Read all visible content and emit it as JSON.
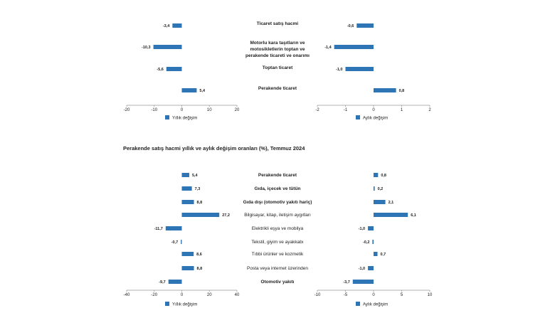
{
  "section_title": "Perakende satış hacmi yıllık ve aylık değişim oranları (%), Temmuz 2024",
  "colors": {
    "bar": "#2e75b6",
    "axis": "#999999",
    "text": "#222222"
  },
  "chart_data": [
    {
      "type": "bar",
      "orientation": "horizontal",
      "panel": "top-left",
      "categories": [
        "Ticaret satış hacmi",
        "Motorlu kara taşıtların ve motosikletlerin toptan ve perakende ticareti ve onarımı",
        "Toptan ticaret",
        "Perakende ticaret"
      ],
      "category_lines": [
        [
          "Ticaret satış hacmi"
        ],
        [
          "Motorlu kara taşıtların ve",
          "motosikletlerin toptan ve",
          "perakende ticareti ve onarımı"
        ],
        [
          "Toptan ticaret"
        ],
        [
          "Perakende ticaret"
        ]
      ],
      "category_bold": [
        true,
        true,
        true,
        true
      ],
      "values": [
        -3.4,
        -10.3,
        -5.6,
        5.4
      ],
      "value_labels": [
        "-3,4",
        "-10,3",
        "-5,6",
        "5,4"
      ],
      "xlim": [
        -20,
        20
      ],
      "xticks": [
        -20,
        -10,
        0,
        10,
        20
      ],
      "xtick_labels": [
        "-20",
        "-10",
        "0",
        "10",
        "20"
      ],
      "legend": "Yıllık değişim"
    },
    {
      "type": "bar",
      "orientation": "horizontal",
      "panel": "top-right",
      "categories": [
        "Ticaret satış hacmi",
        "Motorlu kara taşıtların ve motosikletlerin toptan ve perakende ticareti ve onarımı",
        "Toptan ticaret",
        "Perakende ticaret"
      ],
      "values": [
        -0.6,
        -1.4,
        -1.0,
        0.8
      ],
      "value_labels": [
        "-0,6",
        "-1,4",
        "-1,0",
        "0,8"
      ],
      "xlim": [
        -2,
        2
      ],
      "xticks": [
        -2,
        -1,
        0,
        1,
        2
      ],
      "xtick_labels": [
        "-2",
        "-1",
        "0",
        "1",
        "2"
      ],
      "legend": "Aylık değişim"
    },
    {
      "type": "bar",
      "orientation": "horizontal",
      "panel": "bottom-left",
      "categories": [
        "Perakende ticaret",
        "Gıda, içecek ve tütün",
        "Gıda dışı (otomotiv yakıtı hariç)",
        "Bilgisayar, kitap, iletişim aygıtları",
        "Elektrikli eşya ve mobilya",
        "Tekstil, giyim ve ayakkabı",
        "Tıbbi ürünler ve kozmetik",
        "Posta veya internet üzerinden",
        "Otomotiv yakıtı"
      ],
      "category_lines": [
        [
          "Perakende ticaret"
        ],
        [
          "Gıda, içecek ve tütün"
        ],
        [
          "Gıda dışı (otomotiv yakıtı hariç)"
        ],
        [
          "Bilgisayar, kitap, iletişim aygıtları"
        ],
        [
          "Elektrikli eşya ve mobilya"
        ],
        [
          "Tekstil, giyim ve ayakkabı"
        ],
        [
          "Tıbbi ürünler ve kozmetik"
        ],
        [
          "Posta veya internet üzerinden"
        ],
        [
          "Otomotiv yakıtı"
        ]
      ],
      "category_bold": [
        true,
        true,
        true,
        false,
        false,
        false,
        false,
        false,
        true
      ],
      "values": [
        5.4,
        7.3,
        8.8,
        27.2,
        -11.7,
        -0.7,
        8.6,
        8.8,
        -9.7
      ],
      "value_labels": [
        "5,4",
        "7,3",
        "8,8",
        "27,2",
        "-11,7",
        "-0,7",
        "8,6",
        "8,8",
        "-9,7"
      ],
      "xlim": [
        -40,
        40
      ],
      "xticks": [
        -40,
        -20,
        0,
        20,
        40
      ],
      "xtick_labels": [
        "-40",
        "-20",
        "0",
        "20",
        "40"
      ],
      "legend": "Yıllık değişim"
    },
    {
      "type": "bar",
      "orientation": "horizontal",
      "panel": "bottom-right",
      "categories": [
        "Perakende ticaret",
        "Gıda, içecek ve tütün",
        "Gıda dışı (otomotiv yakıtı hariç)",
        "Bilgisayar, kitap, iletişim aygıtları",
        "Elektrikli eşya ve mobilya",
        "Tekstil, giyim ve ayakkabı",
        "Tıbbi ürünler ve kozmetik",
        "Posta veya internet üzerinden",
        "Otomotiv yakıtı"
      ],
      "values": [
        0.8,
        0.2,
        2.1,
        6.1,
        -1.0,
        -0.2,
        0.7,
        -1.0,
        -3.7
      ],
      "value_labels": [
        "0,8",
        "0,2",
        "2,1",
        "6,1",
        "-1,0",
        "-0,2",
        "0,7",
        "-1,0",
        "-3,7"
      ],
      "xlim": [
        -10,
        10
      ],
      "xticks": [
        -10,
        -5,
        0,
        5,
        10
      ],
      "xtick_labels": [
        "-10",
        "-5",
        "0",
        "5",
        "10"
      ],
      "legend": "Aylık değişim"
    }
  ]
}
